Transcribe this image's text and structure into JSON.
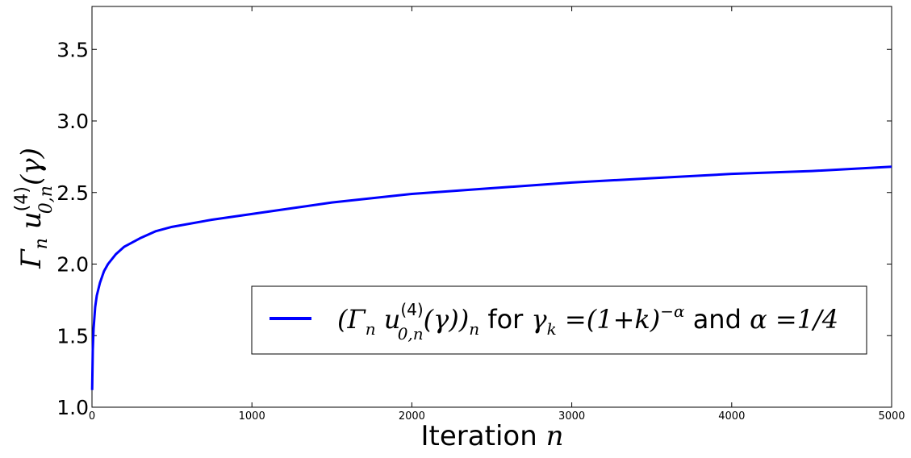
{
  "chart_data": {
    "type": "line",
    "title": "",
    "xlabel": "Iteration n",
    "xlabel_parts": {
      "text": "Iteration ",
      "var": "n"
    },
    "ylabel": "Γn u(4)0,n(γ)",
    "ylabel_parts": {
      "main": "Γ",
      "sub1": "n",
      "u": " u",
      "sup": "(4)",
      "sub2": "0,n",
      "tail": "(γ)"
    },
    "xlim": [
      0,
      5000
    ],
    "ylim": [
      1.0,
      3.8
    ],
    "x_ticks": [
      0,
      1000,
      2000,
      3000,
      4000,
      5000
    ],
    "x_tick_labels": [
      "0",
      "1000",
      "2000",
      "3000",
      "4000",
      "5000"
    ],
    "y_ticks": [
      1.0,
      1.5,
      2.0,
      2.5,
      3.0,
      3.5
    ],
    "y_tick_labels": [
      "1.0",
      "1.5",
      "2.0",
      "2.5",
      "3.0",
      "3.5"
    ],
    "grid": false,
    "legend_position": "lower-right",
    "series": [
      {
        "name": "(Γn u(4)0,n(γ))n for γk=(1+k)−α and α=1/4",
        "color": "#0000ff",
        "x": [
          1,
          5,
          10,
          20,
          30,
          50,
          75,
          100,
          150,
          200,
          300,
          400,
          500,
          750,
          1000,
          1250,
          1500,
          2000,
          2500,
          3000,
          3500,
          4000,
          4500,
          5000
        ],
        "y": [
          1.12,
          1.4,
          1.55,
          1.7,
          1.78,
          1.87,
          1.95,
          2.0,
          2.07,
          2.12,
          2.18,
          2.23,
          2.26,
          2.31,
          2.35,
          2.39,
          2.43,
          2.49,
          2.53,
          2.57,
          2.6,
          2.63,
          2.65,
          2.68
        ]
      }
    ],
    "legend": {
      "line_label_parts": {
        "open": "(Γ",
        "sub_n": "n",
        "u": " u",
        "sup": "(4)",
        "sub": "0,n",
        "mid": "(γ))",
        "sub_end": "n",
        "for_text": " for ",
        "gamma": "γ",
        "gamma_sub": "k",
        "eq": " =(1+k)",
        "exp": "−α",
        "and_text": "  and ",
        "alpha": "α =1/4"
      }
    }
  }
}
